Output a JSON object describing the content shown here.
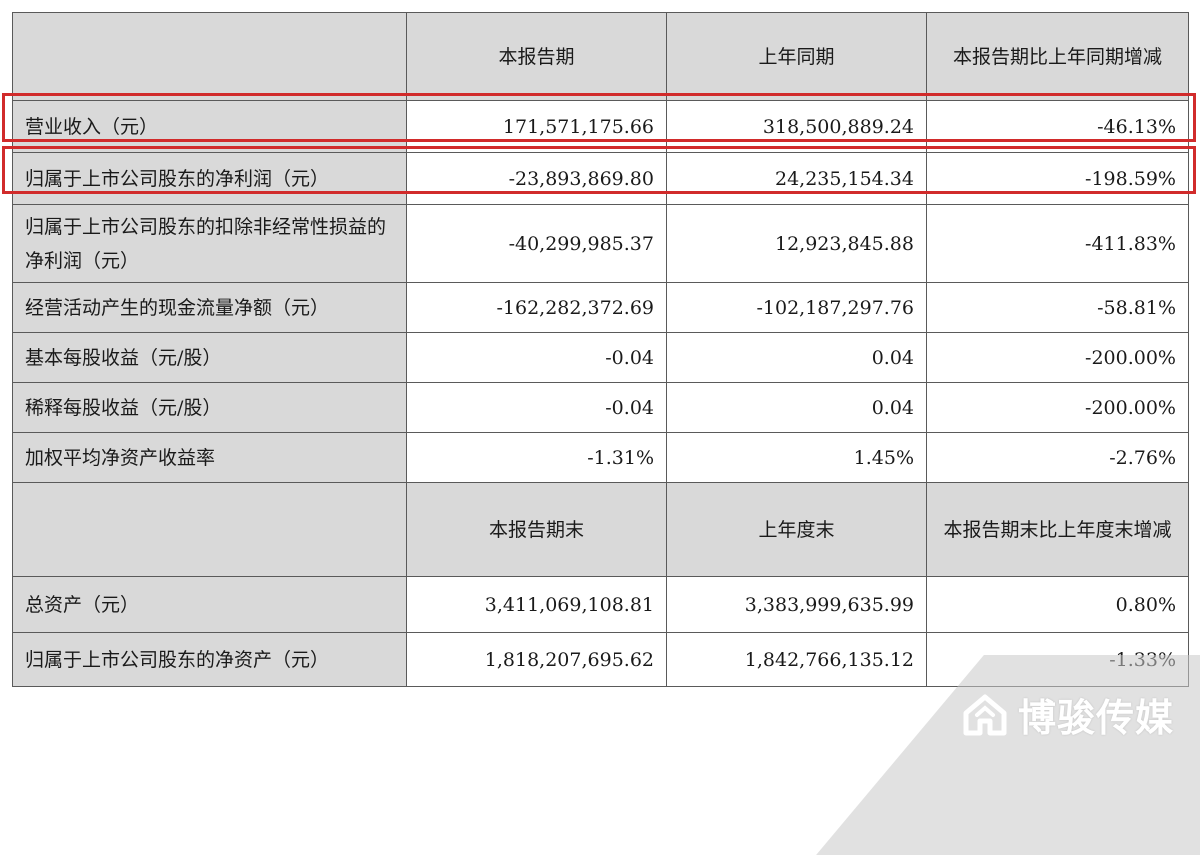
{
  "table": {
    "header1": {
      "c2": "本报告期",
      "c3": "上年同期",
      "c4": "本报告期比上年同期增减"
    },
    "rows1": [
      {
        "label": "营业收入（元）",
        "current": "171,571,175.66",
        "prior": "318,500,889.24",
        "change": "-46.13%"
      },
      {
        "label": "归属于上市公司股东的净利润（元）",
        "current": "-23,893,869.80",
        "prior": "24,235,154.34",
        "change": "-198.59%"
      },
      {
        "label": "归属于上市公司股东的扣除非经常性损益的净利润（元）",
        "current": "-40,299,985.37",
        "prior": "12,923,845.88",
        "change": "-411.83%"
      },
      {
        "label": "经营活动产生的现金流量净额（元）",
        "current": "-162,282,372.69",
        "prior": "-102,187,297.76",
        "change": "-58.81%"
      },
      {
        "label": "基本每股收益（元/股）",
        "current": "-0.04",
        "prior": "0.04",
        "change": "-200.00%"
      },
      {
        "label": "稀释每股收益（元/股）",
        "current": "-0.04",
        "prior": "0.04",
        "change": "-200.00%"
      },
      {
        "label": "加权平均净资产收益率",
        "current": "-1.31%",
        "prior": "1.45%",
        "change": "-2.76%"
      }
    ],
    "header2": {
      "c2": "本报告期末",
      "c3": "上年度末",
      "c4": "本报告期末比上年度末增减"
    },
    "rows2": [
      {
        "label": "总资产（元）",
        "current": "3,411,069,108.81",
        "prior": "3,383,999,635.99",
        "change": "0.80%"
      },
      {
        "label": "归属于上市公司股东的净资产（元）",
        "current": "1,818,207,695.62",
        "prior": "1,842,766,135.12",
        "change": "-1.33%"
      }
    ]
  },
  "highlight_color": "#d12b2b",
  "watermark": {
    "text": "博骏传媒",
    "icon": "house-logo-icon"
  }
}
